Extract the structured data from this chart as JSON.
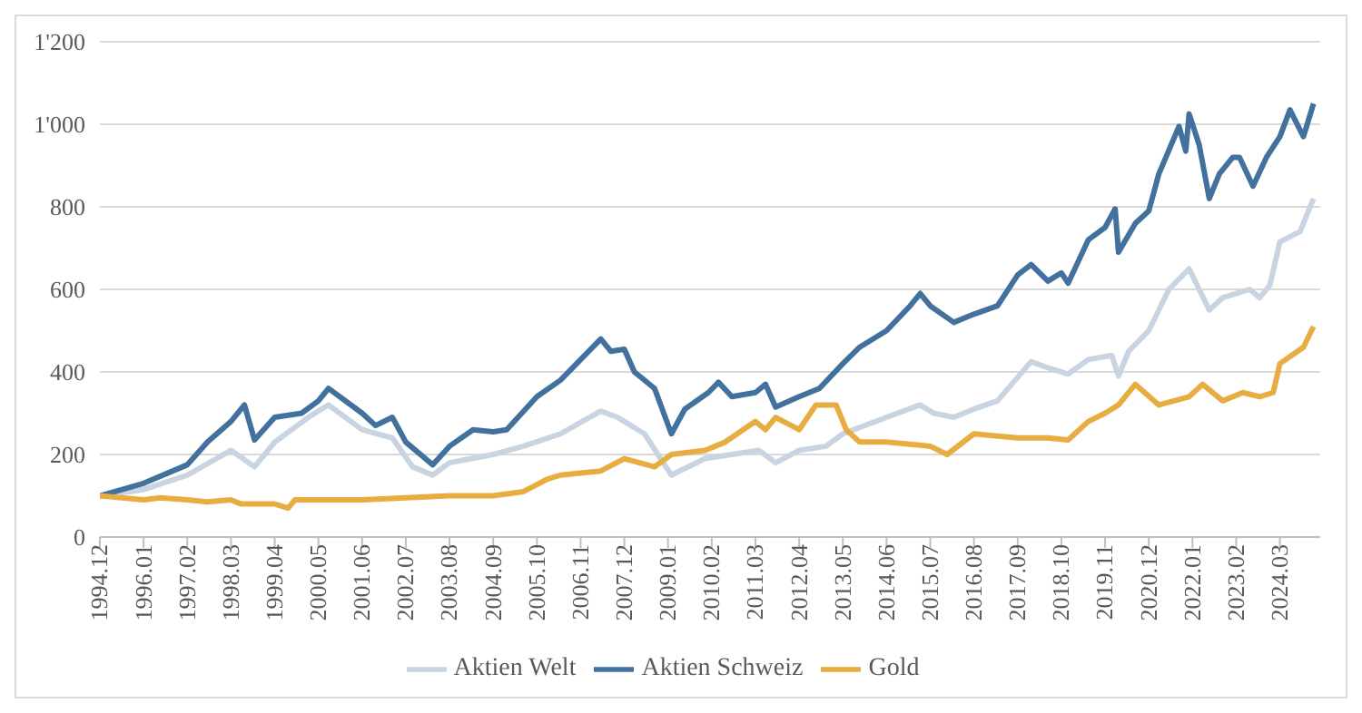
{
  "chart_data": {
    "type": "line",
    "legend": "bottom",
    "grid": "y",
    "marker": "none",
    "line_style": "solid",
    "xlim": [
      "1994-12",
      "2025-03"
    ],
    "xticks": [
      {
        "value": "1994-12",
        "label": "1994.12"
      },
      {
        "value": "1996-01",
        "label": "1996.01"
      },
      {
        "value": "1997-02",
        "label": "1997.02"
      },
      {
        "value": "1998-03",
        "label": "1998.03"
      },
      {
        "value": "1999-04",
        "label": "1999.04"
      },
      {
        "value": "2000-05",
        "label": "2000.05"
      },
      {
        "value": "2001-06",
        "label": "2001.06"
      },
      {
        "value": "2002-07",
        "label": "2002.07"
      },
      {
        "value": "2003-08",
        "label": "2003.08"
      },
      {
        "value": "2004-09",
        "label": "2004.09"
      },
      {
        "value": "2005-10",
        "label": "2005.10"
      },
      {
        "value": "2006-11",
        "label": "2006.11"
      },
      {
        "value": "2007-12",
        "label": "2007.12"
      },
      {
        "value": "2009-01",
        "label": "2009.01"
      },
      {
        "value": "2010-02",
        "label": "2010.02"
      },
      {
        "value": "2011-03",
        "label": "2011.03"
      },
      {
        "value": "2012-04",
        "label": "2012.04"
      },
      {
        "value": "2013-05",
        "label": "2013.05"
      },
      {
        "value": "2014-06",
        "label": "2014.06"
      },
      {
        "value": "2015-07",
        "label": "2015.07"
      },
      {
        "value": "2016-08",
        "label": "2016.08"
      },
      {
        "value": "2017-09",
        "label": "2017.09"
      },
      {
        "value": "2018-10",
        "label": "2018.10"
      },
      {
        "value": "2019-11",
        "label": "2019.11"
      },
      {
        "value": "2020-12",
        "label": "2020.12"
      },
      {
        "value": "2022-01",
        "label": "2022.01"
      },
      {
        "value": "2023-02",
        "label": "2023.02"
      },
      {
        "value": "2024-03",
        "label": "2024.03"
      }
    ],
    "ylim": [
      0,
      1200
    ],
    "yticks": [
      0,
      200,
      400,
      600,
      800,
      {
        "value": 1000,
        "label": "1'000"
      },
      {
        "value": 1200,
        "label": "1'200"
      }
    ],
    "series": [
      {
        "name": "Aktien Welt",
        "color": "#c9d4e3",
        "x": [
          "1994-12",
          "1996-01",
          "1997-02",
          "1998-03",
          "1998-10",
          "1999-04",
          "2000-02",
          "2000-08",
          "2001-06",
          "2002-03",
          "2002-09",
          "2003-03",
          "2003-08",
          "2004-09",
          "2005-06",
          "2006-05",
          "2007-05",
          "2007-10",
          "2008-06",
          "2009-02",
          "2009-12",
          "2010-08",
          "2011-04",
          "2011-09",
          "2012-04",
          "2012-12",
          "2013-05",
          "2014-06",
          "2015-04",
          "2015-08",
          "2016-02",
          "2016-08",
          "2017-03",
          "2018-01",
          "2018-06",
          "2018-12",
          "2019-06",
          "2020-01",
          "2020-03",
          "2020-06",
          "2020-12",
          "2021-06",
          "2021-12",
          "2022-06",
          "2022-10",
          "2023-06",
          "2023-09",
          "2023-12",
          "2024-03",
          "2024-09",
          "2025-01"
        ],
        "values": [
          100,
          115,
          150,
          210,
          170,
          230,
          290,
          320,
          260,
          240,
          170,
          150,
          180,
          200,
          220,
          250,
          305,
          290,
          250,
          150,
          190,
          200,
          210,
          180,
          210,
          220,
          250,
          290,
          320,
          300,
          290,
          310,
          330,
          425,
          410,
          395,
          430,
          440,
          390,
          450,
          500,
          600,
          650,
          550,
          580,
          600,
          580,
          610,
          715,
          740,
          820
        ]
      },
      {
        "name": "Aktien Schweiz",
        "color": "#41719c",
        "x": [
          "1994-12",
          "1996-01",
          "1997-02",
          "1997-08",
          "1998-03",
          "1998-07",
          "1998-10",
          "1999-04",
          "1999-12",
          "2000-05",
          "2000-08",
          "2001-06",
          "2001-10",
          "2002-03",
          "2002-07",
          "2003-03",
          "2003-08",
          "2004-03",
          "2004-09",
          "2005-01",
          "2005-10",
          "2006-05",
          "2006-11",
          "2007-05",
          "2007-08",
          "2007-12",
          "2008-03",
          "2008-09",
          "2009-02",
          "2009-06",
          "2010-01",
          "2010-04",
          "2010-08",
          "2011-03",
          "2011-06",
          "2011-09",
          "2012-04",
          "2012-10",
          "2013-05",
          "2013-10",
          "2014-06",
          "2015-01",
          "2015-04",
          "2015-07",
          "2016-02",
          "2016-08",
          "2017-03",
          "2017-09",
          "2018-01",
          "2018-06",
          "2018-10",
          "2018-12",
          "2019-06",
          "2019-11",
          "2020-02",
          "2020-03",
          "2020-08",
          "2020-12",
          "2021-03",
          "2021-09",
          "2021-11",
          "2021-12",
          "2022-03",
          "2022-06",
          "2022-09",
          "2023-01",
          "2023-03",
          "2023-07",
          "2023-11",
          "2024-03",
          "2024-06",
          "2024-10",
          "2025-01"
        ],
        "values": [
          100,
          130,
          175,
          230,
          280,
          320,
          235,
          290,
          300,
          330,
          360,
          300,
          270,
          290,
          230,
          175,
          220,
          260,
          255,
          260,
          340,
          380,
          430,
          480,
          450,
          455,
          400,
          360,
          250,
          310,
          350,
          375,
          340,
          350,
          370,
          315,
          340,
          360,
          420,
          460,
          500,
          560,
          590,
          560,
          520,
          540,
          560,
          635,
          660,
          620,
          640,
          615,
          720,
          750,
          795,
          690,
          760,
          790,
          880,
          995,
          935,
          1025,
          950,
          820,
          880,
          920,
          920,
          850,
          920,
          970,
          1035,
          970,
          1050
        ]
      },
      {
        "name": "Gold",
        "color": "#e8ad40",
        "x": [
          "1994-12",
          "1996-01",
          "1996-06",
          "1997-02",
          "1997-08",
          "1998-03",
          "1998-06",
          "1999-04",
          "1999-08",
          "1999-10",
          "2000-05",
          "2001-06",
          "2002-07",
          "2003-08",
          "2004-09",
          "2005-06",
          "2006-01",
          "2006-05",
          "2007-05",
          "2007-12",
          "2008-09",
          "2009-02",
          "2009-12",
          "2010-06",
          "2011-03",
          "2011-06",
          "2011-09",
          "2012-04",
          "2012-09",
          "2013-03",
          "2013-06",
          "2013-10",
          "2014-06",
          "2015-07",
          "2015-12",
          "2016-08",
          "2017-09",
          "2018-06",
          "2018-12",
          "2019-06",
          "2019-11",
          "2020-03",
          "2020-08",
          "2021-03",
          "2021-12",
          "2022-04",
          "2022-10",
          "2023-04",
          "2023-09",
          "2024-01",
          "2024-03",
          "2024-10",
          "2025-01"
        ],
        "values": [
          100,
          90,
          95,
          90,
          85,
          90,
          80,
          80,
          70,
          90,
          90,
          90,
          95,
          100,
          100,
          110,
          140,
          150,
          160,
          190,
          170,
          200,
          210,
          230,
          280,
          260,
          290,
          260,
          320,
          320,
          260,
          230,
          230,
          220,
          200,
          250,
          240,
          240,
          235,
          280,
          300,
          320,
          370,
          320,
          340,
          370,
          330,
          350,
          340,
          350,
          420,
          460,
          510
        ]
      }
    ]
  }
}
